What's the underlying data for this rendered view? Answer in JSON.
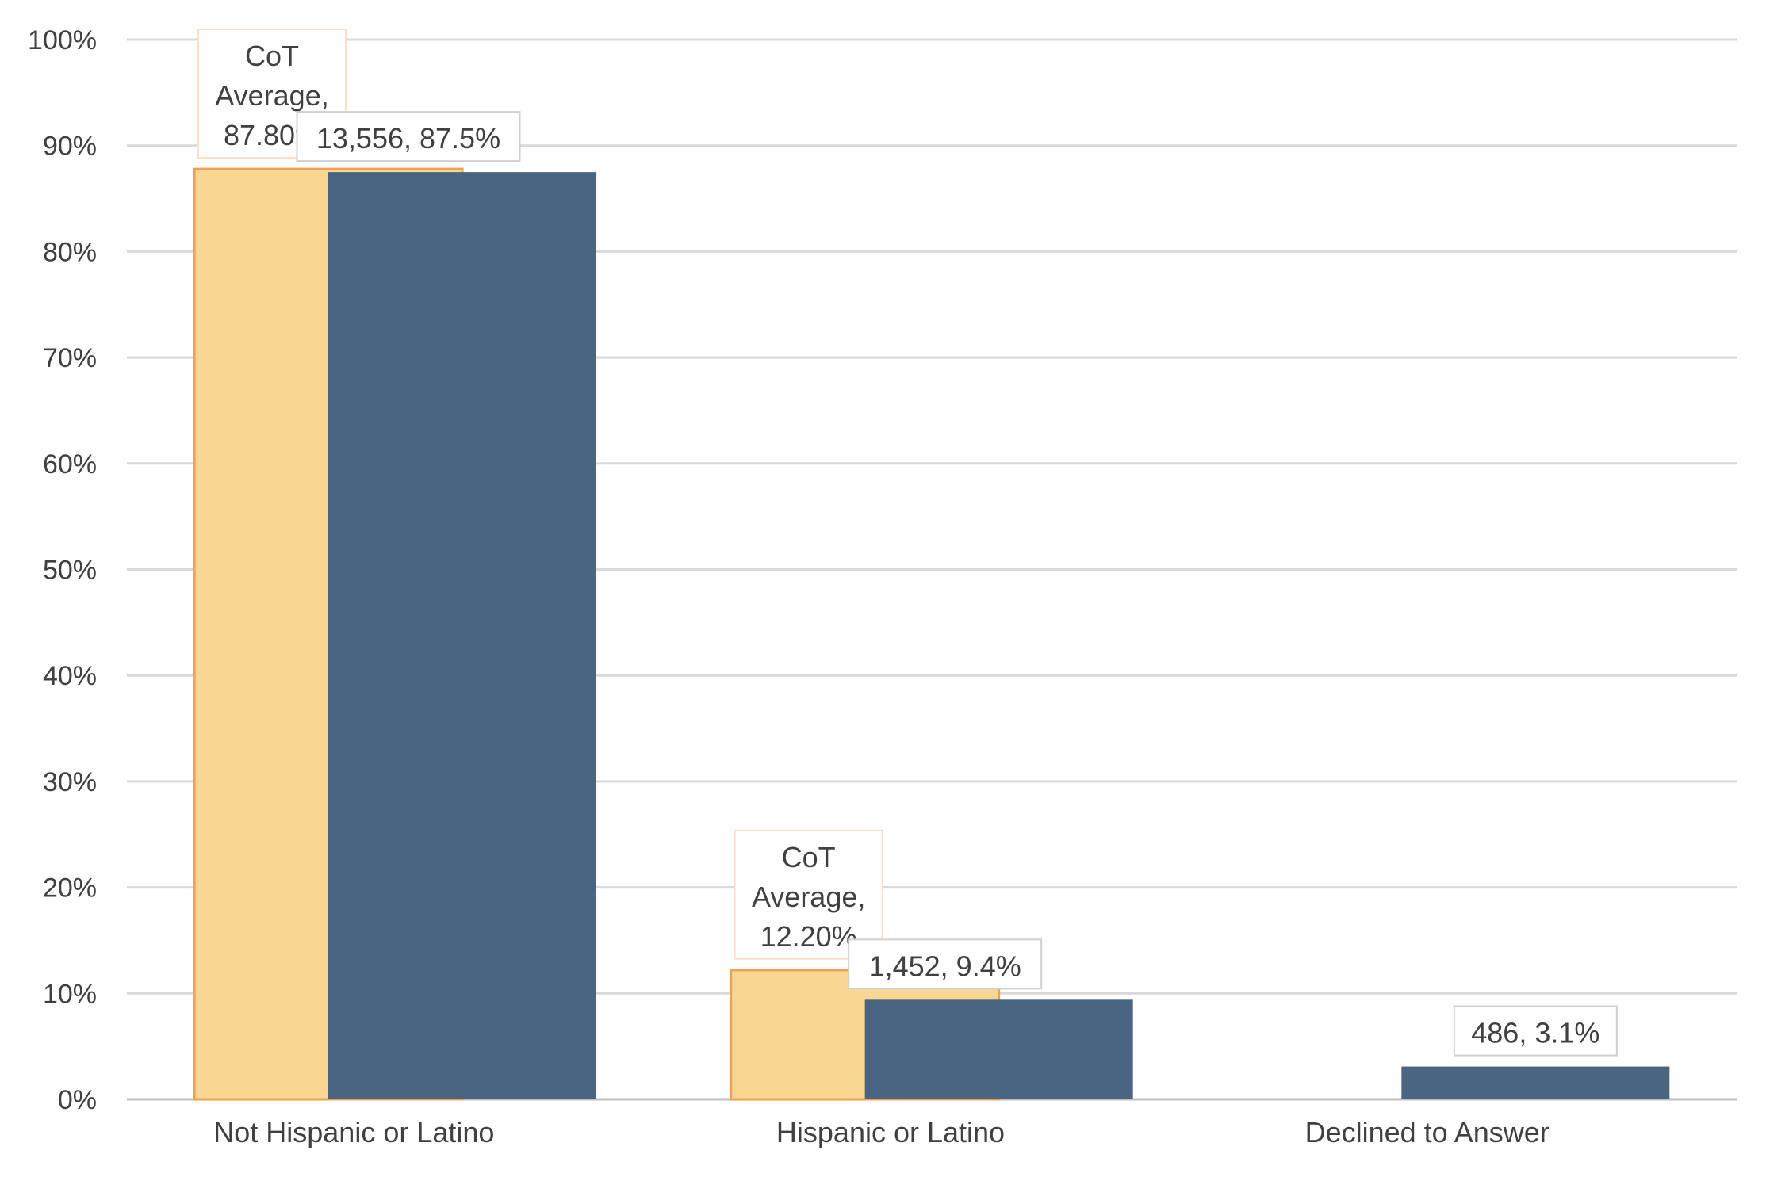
{
  "chart_data": {
    "type": "bar",
    "title": "",
    "xlabel": "",
    "ylabel": "",
    "categories": [
      "Not Hispanic or Latino",
      "Hispanic or Latino",
      "Declined to Answer"
    ],
    "ylim": [
      0,
      100
    ],
    "y_ticks": [
      0,
      10,
      20,
      30,
      40,
      50,
      60,
      70,
      80,
      90,
      100
    ],
    "y_tick_labels": [
      "0%",
      "10%",
      "20%",
      "30%",
      "40%",
      "50%",
      "60%",
      "70%",
      "80%",
      "90%",
      "100%"
    ],
    "grid": true,
    "legend": "none",
    "series": [
      {
        "color": "#f9d792",
        "stroke": "#f0a050",
        "values": [
          87.8,
          12.2,
          null
        ],
        "labels": [
          [
            "CoT",
            "Average,",
            "87.80%"
          ],
          [
            "CoT",
            "Average,",
            "12.20%"
          ],
          null
        ]
      },
      {
        "color": "#4a6582",
        "values": [
          87.5,
          9.4,
          3.1
        ],
        "labels": [
          [
            "13,556, 87.5%"
          ],
          [
            "1,452, 9.4%"
          ],
          [
            "486, 3.1%"
          ]
        ]
      }
    ]
  }
}
